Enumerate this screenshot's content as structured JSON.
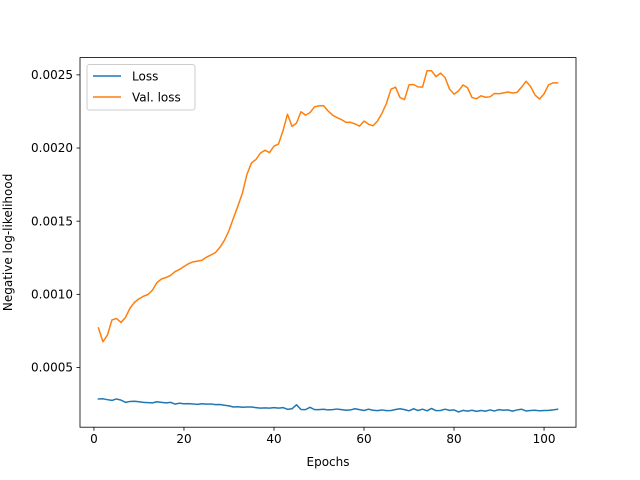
{
  "chart_data": {
    "type": "line",
    "title": "",
    "xlabel": "Epochs",
    "ylabel": "Negative log-likelihood",
    "xlim": [
      -3.1,
      107.1
    ],
    "ylim": [
      9.2e-05,
      0.002618
    ],
    "xticks": [
      0,
      20,
      40,
      60,
      80,
      100
    ],
    "xtick_labels": [
      "0",
      "20",
      "40",
      "60",
      "80",
      "100"
    ],
    "yticks": [
      0.0005,
      0.001,
      0.0015,
      0.002,
      0.0025
    ],
    "ytick_labels": [
      "0.0005",
      "0.0010",
      "0.0015",
      "0.0020",
      "0.0025"
    ],
    "grid": false,
    "legend_position": "top-left",
    "series": [
      {
        "name": "Loss",
        "color": "#1f77b4",
        "x": [
          1,
          2,
          3,
          4,
          5,
          6,
          7,
          8,
          9,
          10,
          11,
          12,
          13,
          14,
          15,
          16,
          17,
          18,
          19,
          20,
          21,
          22,
          23,
          24,
          25,
          26,
          27,
          28,
          29,
          30,
          31,
          32,
          33,
          34,
          35,
          36,
          37,
          38,
          39,
          40,
          41,
          42,
          43,
          44,
          45,
          46,
          47,
          48,
          49,
          50,
          51,
          52,
          53,
          54,
          55,
          56,
          57,
          58,
          59,
          60,
          61,
          62,
          63,
          64,
          65,
          66,
          67,
          68,
          69,
          70,
          71,
          72,
          73,
          74,
          75,
          76,
          77,
          78,
          79,
          80,
          81,
          82,
          83,
          84,
          85,
          86,
          87,
          88,
          89,
          90,
          91,
          92,
          93,
          94,
          95,
          96,
          97,
          98,
          99,
          100,
          101,
          102,
          103
        ],
        "values": [
          0.000285,
          0.000286,
          0.00028,
          0.000275,
          0.000285,
          0.000277,
          0.000262,
          0.000268,
          0.000269,
          0.000266,
          0.000262,
          0.00026,
          0.000258,
          0.000266,
          0.000262,
          0.000258,
          0.000262,
          0.00025,
          0.000256,
          0.000252,
          0.000253,
          0.000251,
          0.000248,
          0.000252,
          0.00025,
          0.000251,
          0.000246,
          0.000247,
          0.000242,
          0.000238,
          0.00023,
          0.000232,
          0.000228,
          0.00023,
          0.00023,
          0.000226,
          0.000222,
          0.000224,
          0.000222,
          0.000226,
          0.000222,
          0.000226,
          0.000214,
          0.000218,
          0.000245,
          0.000213,
          0.000212,
          0.000228,
          0.000212,
          0.000212,
          0.000215,
          0.00021,
          0.000212,
          0.000216,
          0.000212,
          0.000208,
          0.00021,
          0.000218,
          0.000212,
          0.000206,
          0.000215,
          0.000208,
          0.000205,
          0.00021,
          0.000205,
          0.000206,
          0.000213,
          0.000218,
          0.000212,
          0.000204,
          0.000218,
          0.000206,
          0.000215,
          0.000204,
          0.00022,
          0.000205,
          0.000206,
          0.000215,
          0.000207,
          0.00021,
          0.000196,
          0.000207,
          0.000202,
          0.000208,
          0.0002,
          0.000206,
          0.000202,
          0.00021,
          0.000203,
          0.000212,
          0.000208,
          0.00021,
          0.000202,
          0.00021,
          0.000215,
          0.000203,
          0.000206,
          0.000208,
          0.000204,
          0.000206,
          0.000207,
          0.00021,
          0.000215
        ]
      },
      {
        "name": "Val. loss",
        "color": "#ff7f0e",
        "x": [
          1,
          2,
          3,
          4,
          5,
          6,
          7,
          8,
          9,
          10,
          11,
          12,
          13,
          14,
          15,
          16,
          17,
          18,
          19,
          20,
          21,
          22,
          23,
          24,
          25,
          26,
          27,
          28,
          29,
          30,
          31,
          32,
          33,
          34,
          35,
          36,
          37,
          38,
          39,
          40,
          41,
          42,
          43,
          44,
          45,
          46,
          47,
          48,
          49,
          50,
          51,
          52,
          53,
          54,
          55,
          56,
          57,
          58,
          59,
          60,
          61,
          62,
          63,
          64,
          65,
          66,
          67,
          68,
          69,
          70,
          71,
          72,
          73,
          74,
          75,
          76,
          77,
          78,
          79,
          80,
          81,
          82,
          83,
          84,
          85,
          86,
          87,
          88,
          89,
          90,
          91,
          92,
          93,
          94,
          95,
          96,
          97,
          98,
          99,
          100,
          101,
          102,
          103
        ],
        "values": [
          0.00077,
          0.000676,
          0.000722,
          0.000825,
          0.000835,
          0.000808,
          0.000842,
          0.000905,
          0.000945,
          0.000969,
          0.000987,
          0.000999,
          0.001029,
          0.00108,
          0.001105,
          0.001115,
          0.001129,
          0.001155,
          0.00117,
          0.00119,
          0.001209,
          0.001222,
          0.001227,
          0.001233,
          0.001254,
          0.001269,
          0.001286,
          0.001322,
          0.00137,
          0.001436,
          0.001522,
          0.001605,
          0.001693,
          0.001821,
          0.001898,
          0.001922,
          0.001966,
          0.001985,
          0.001969,
          0.002013,
          0.002027,
          0.002118,
          0.002231,
          0.002148,
          0.00217,
          0.002248,
          0.002225,
          0.002242,
          0.002281,
          0.002288,
          0.00229,
          0.002254,
          0.002225,
          0.002208,
          0.002194,
          0.002175,
          0.002176,
          0.002165,
          0.00215,
          0.002184,
          0.002163,
          0.002152,
          0.002185,
          0.002238,
          0.002306,
          0.002402,
          0.002416,
          0.002345,
          0.002331,
          0.002432,
          0.002434,
          0.002418,
          0.002416,
          0.002528,
          0.002528,
          0.002488,
          0.002512,
          0.002482,
          0.002403,
          0.002368,
          0.00239,
          0.002431,
          0.002412,
          0.002345,
          0.002337,
          0.002357,
          0.002347,
          0.00235,
          0.002373,
          0.002371,
          0.002377,
          0.002383,
          0.002376,
          0.00238,
          0.002416,
          0.002456,
          0.002421,
          0.002362,
          0.002335,
          0.00237,
          0.002432,
          0.002445,
          0.002445
        ]
      }
    ]
  }
}
